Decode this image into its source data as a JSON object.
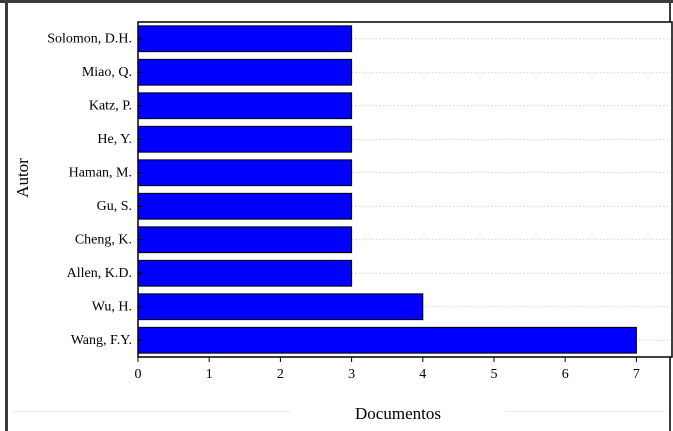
{
  "chart_data": {
    "type": "bar",
    "orientation": "horizontal",
    "title": "",
    "xlabel": "Documentos",
    "ylabel": "Autor",
    "categories": [
      "Solomon, D.H.",
      "Miao, Q.",
      "Katz, P.",
      "He, Y.",
      "Haman, M.",
      "Gu, S.",
      "Cheng, K.",
      "Allen, K.D.",
      "Wu, H.",
      "Wang, F.Y."
    ],
    "values": [
      3,
      3,
      3,
      3,
      3,
      3,
      3,
      3,
      4,
      7
    ],
    "xlim": [
      0,
      7.5
    ],
    "xticks": [
      0,
      1,
      2,
      3,
      4,
      5,
      6,
      7
    ],
    "bar_color": "#0000ff",
    "grid": "dotted horizontal",
    "legend": "none"
  }
}
